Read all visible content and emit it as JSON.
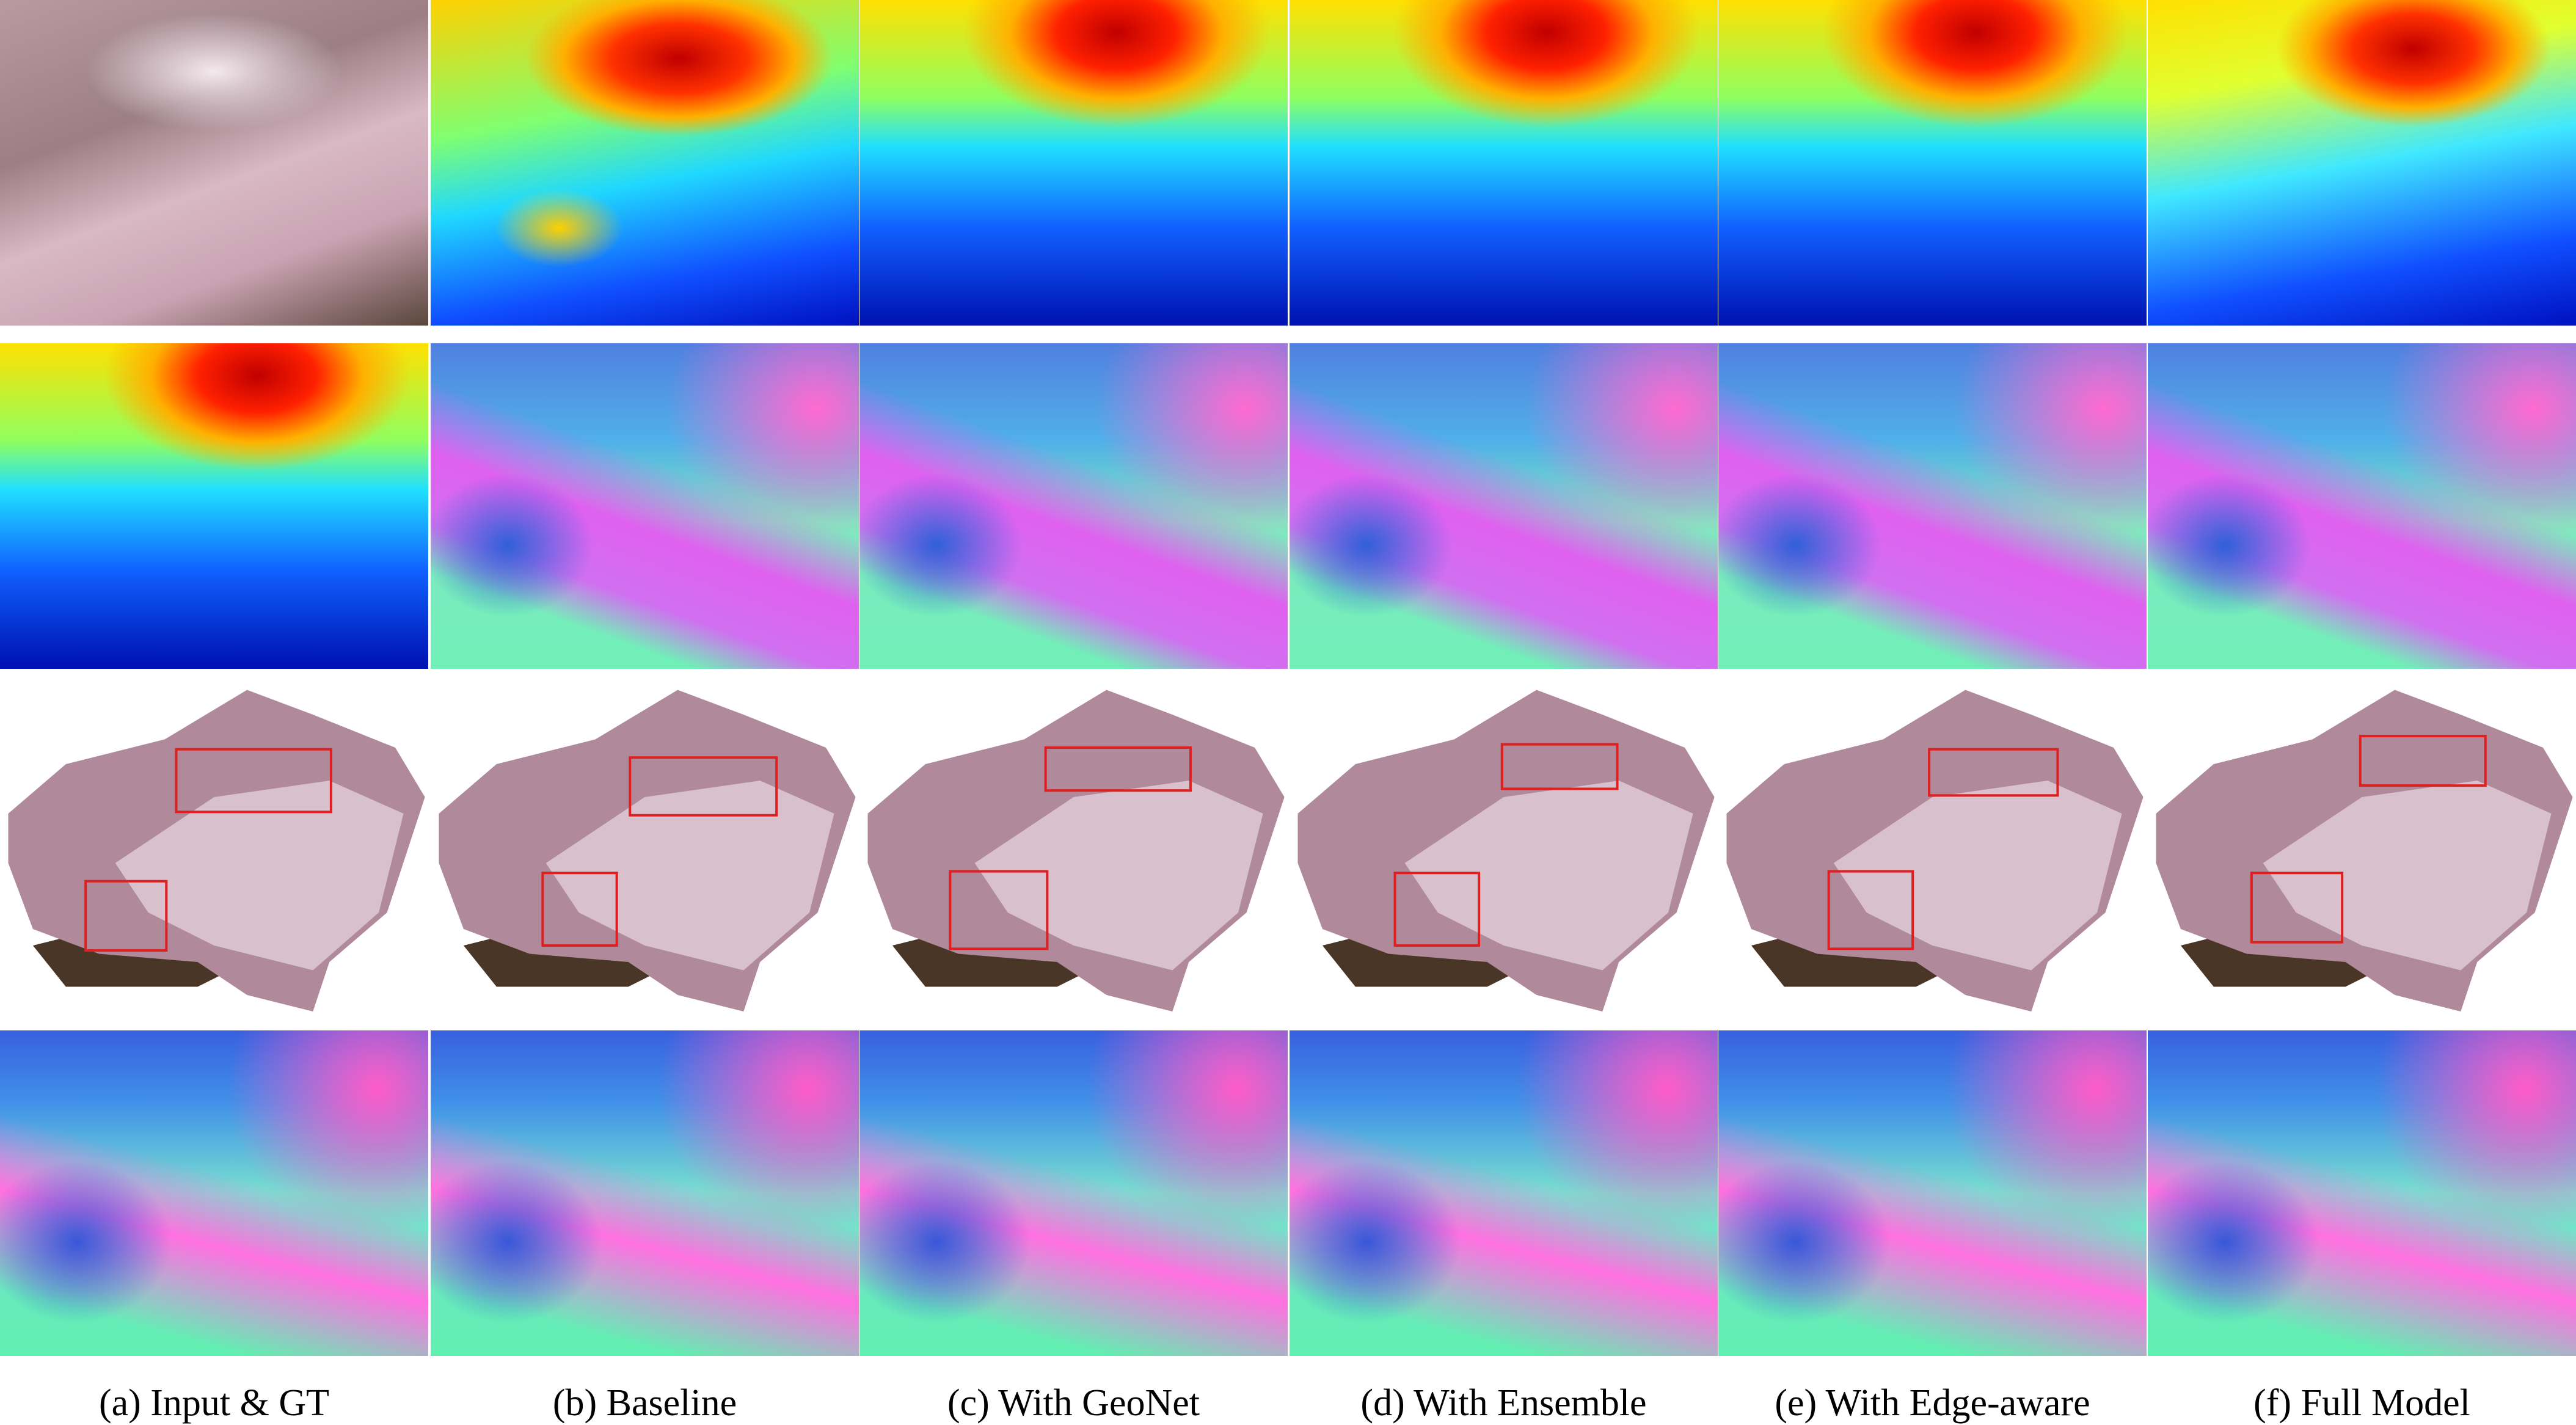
{
  "figure": {
    "panels": [
      {
        "caption": "(a) Input & GT"
      },
      {
        "caption": "(b) Baseline"
      },
      {
        "caption": "(c) With GeoNet"
      },
      {
        "caption": "(d) With Ensemble"
      },
      {
        "caption": "(e) With Edge-aware"
      },
      {
        "caption": "(f) Full Model"
      }
    ],
    "rows": [
      "depth",
      "surface-normal-from-depth",
      "point-cloud",
      "surface-normal"
    ],
    "highlight_box_color": "#e02020"
  }
}
